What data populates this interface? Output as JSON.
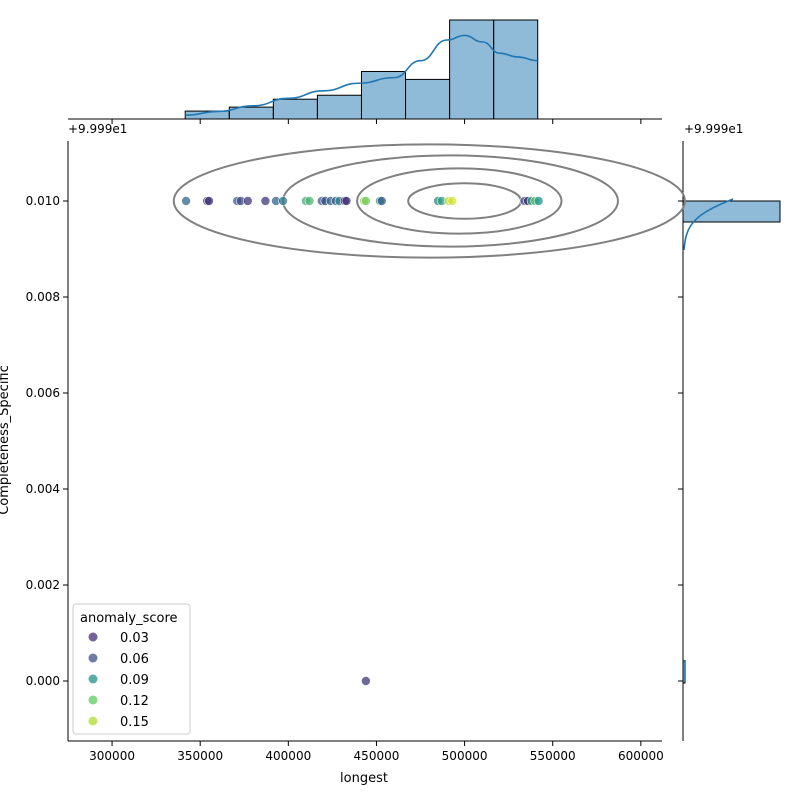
{
  "chart_data": {
    "type": "scatter",
    "subtype": "jointplot",
    "xlabel": "longest",
    "ylabel": "Completeness_Specific",
    "xlim": [
      275000,
      612000
    ],
    "ylim": [
      -0.00125,
      0.01125
    ],
    "x_ticks": [
      300000,
      350000,
      400000,
      450000,
      500000,
      550000,
      600000
    ],
    "x_tick_labels": [
      "300000",
      "350000",
      "400000",
      "450000",
      "500000",
      "550000",
      "600000"
    ],
    "y_ticks": [
      0.0,
      0.002,
      0.004,
      0.006,
      0.008,
      0.01
    ],
    "y_tick_labels": [
      "0.000",
      "0.002",
      "0.004",
      "0.006",
      "0.008",
      "0.010"
    ],
    "y_offset_label": "+9.999e1",
    "marginal_y_offset_label": "+9.999e1",
    "colormap": "viridis",
    "legend": {
      "title": "anomaly_score",
      "placement": "lower-left",
      "entries": [
        {
          "label": "0.03",
          "color": "#472d7b"
        },
        {
          "label": "0.06",
          "color": "#3b528b"
        },
        {
          "label": "0.09",
          "color": "#21918c"
        },
        {
          "label": "0.12",
          "color": "#5ec962"
        },
        {
          "label": "0.15",
          "color": "#addc30"
        }
      ]
    },
    "points": [
      {
        "x": 342000,
        "y": 0.01,
        "score": 0.06
      },
      {
        "x": 354000,
        "y": 0.01,
        "score": 0.02
      },
      {
        "x": 355000,
        "y": 0.01,
        "score": 0.03
      },
      {
        "x": 371000,
        "y": 0.01,
        "score": 0.05
      },
      {
        "x": 373000,
        "y": 0.01,
        "score": 0.04
      },
      {
        "x": 377000,
        "y": 0.01,
        "score": 0.03
      },
      {
        "x": 387000,
        "y": 0.01,
        "score": 0.03
      },
      {
        "x": 393000,
        "y": 0.01,
        "score": 0.06
      },
      {
        "x": 397000,
        "y": 0.01,
        "score": 0.07
      },
      {
        "x": 410000,
        "y": 0.01,
        "score": 0.11
      },
      {
        "x": 412000,
        "y": 0.01,
        "score": 0.12
      },
      {
        "x": 419000,
        "y": 0.01,
        "score": 0.05
      },
      {
        "x": 421000,
        "y": 0.01,
        "score": 0.04
      },
      {
        "x": 424000,
        "y": 0.01,
        "score": 0.06
      },
      {
        "x": 427000,
        "y": 0.01,
        "score": 0.05
      },
      {
        "x": 429000,
        "y": 0.01,
        "score": 0.08
      },
      {
        "x": 432000,
        "y": 0.01,
        "score": 0.01
      },
      {
        "x": 433000,
        "y": 0.01,
        "score": 0.03
      },
      {
        "x": 443000,
        "y": 0.01,
        "score": 0.15
      },
      {
        "x": 444000,
        "y": 0.01,
        "score": 0.14
      },
      {
        "x": 452000,
        "y": 0.01,
        "score": 0.09
      },
      {
        "x": 453000,
        "y": 0.01,
        "score": 0.05
      },
      {
        "x": 485000,
        "y": 0.01,
        "score": 0.08
      },
      {
        "x": 487000,
        "y": 0.01,
        "score": 0.1
      },
      {
        "x": 491000,
        "y": 0.01,
        "score": 0.16
      },
      {
        "x": 493000,
        "y": 0.01,
        "score": 0.17
      },
      {
        "x": 534000,
        "y": 0.01,
        "score": 0.04
      },
      {
        "x": 536000,
        "y": 0.01,
        "score": 0.02
      },
      {
        "x": 538000,
        "y": 0.01,
        "score": 0.1
      },
      {
        "x": 540000,
        "y": 0.01,
        "score": 0.13
      },
      {
        "x": 542000,
        "y": 0.01,
        "score": 0.09
      },
      {
        "x": 444000,
        "y": 0.0,
        "score": 0.03
      }
    ],
    "histogram_x": {
      "bin_edges": [
        341500,
        366500,
        391500,
        416500,
        441500,
        466500,
        491500,
        516500,
        541500
      ],
      "counts": [
        2,
        3,
        5,
        6,
        12,
        10,
        25,
        25
      ],
      "kde": [
        [
          341500,
          1.0
        ],
        [
          360000,
          2.0
        ],
        [
          380000,
          3.5
        ],
        [
          400000,
          5.5
        ],
        [
          420000,
          7.5
        ],
        [
          440000,
          9.5
        ],
        [
          460000,
          11.0
        ],
        [
          475000,
          15.5
        ],
        [
          490000,
          21.0
        ],
        [
          500000,
          22.2
        ],
        [
          510000,
          20.5
        ],
        [
          520000,
          17.5
        ],
        [
          530000,
          16.5
        ],
        [
          541500,
          15.5
        ]
      ]
    },
    "histogram_y": {
      "bin_edges": [
        0.00955,
        0.01
      ],
      "counts": [
        31
      ],
      "note_bin_bottom_small": true
    },
    "kde_contours": [
      {
        "cx": 500000,
        "cy": 0.01,
        "rx": 32000,
        "ry": 0.00037
      },
      {
        "cx": 497000,
        "cy": 0.01,
        "rx": 58000,
        "ry": 0.00068
      },
      {
        "cx": 492000,
        "cy": 0.01,
        "rx": 95000,
        "ry": 0.00095
      },
      {
        "cx": 480000,
        "cy": 0.01,
        "rx": 145000,
        "ry": 0.00118
      }
    ]
  }
}
